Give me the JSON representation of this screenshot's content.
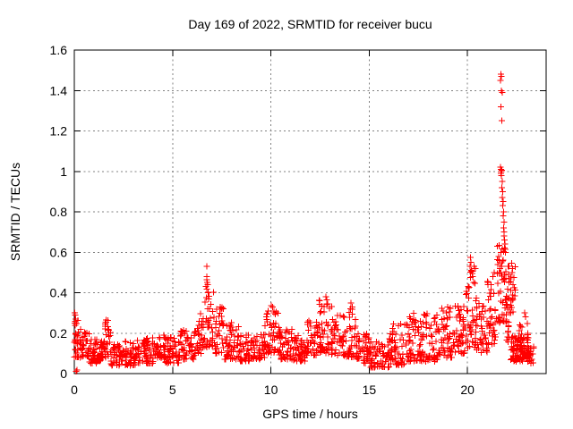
{
  "colors": {
    "marker": "#ff0000",
    "grid": "#808080",
    "border": "#000000",
    "background": "#ffffff",
    "text": "#000000"
  },
  "chart_data": {
    "type": "scatter",
    "title": "Day 169 of 2022, SRMTID for receiver bucu",
    "xlabel": "GPS time / hours",
    "ylabel": "SRMTID / TECUs",
    "xlim": [
      0,
      24
    ],
    "ylim": [
      0,
      1.6
    ],
    "xticks": [
      0,
      5,
      10,
      15,
      20
    ],
    "yticks": [
      0,
      0.2,
      0.4,
      0.6,
      0.8,
      1,
      1.2,
      1.4,
      1.6
    ],
    "grid": "dashed",
    "legend": "none",
    "marker": "plus",
    "notable_points": [
      [
        0.02,
        0.3
      ],
      [
        0.04,
        0.29
      ],
      [
        0.06,
        0.27
      ],
      [
        0.03,
        0.25
      ],
      [
        0.08,
        0.012
      ],
      [
        0.13,
        0.018
      ],
      [
        1.62,
        0.265
      ],
      [
        1.58,
        0.245
      ],
      [
        6.7,
        0.43
      ],
      [
        6.73,
        0.53
      ],
      [
        6.74,
        0.48
      ],
      [
        6.75,
        0.465
      ],
      [
        6.76,
        0.45
      ],
      [
        6.78,
        0.44
      ],
      [
        6.8,
        0.4
      ],
      [
        6.83,
        0.37
      ],
      [
        10.02,
        0.335
      ],
      [
        10.08,
        0.33
      ],
      [
        10.15,
        0.31
      ],
      [
        10.22,
        0.295
      ],
      [
        12.8,
        0.38
      ],
      [
        12.84,
        0.365
      ],
      [
        12.88,
        0.345
      ],
      [
        14.08,
        0.35
      ],
      [
        14.13,
        0.33
      ],
      [
        17.05,
        0.28
      ],
      [
        18.92,
        0.3
      ],
      [
        20.12,
        0.53
      ],
      [
        20.16,
        0.575
      ],
      [
        20.18,
        0.55
      ],
      [
        20.22,
        0.505
      ],
      [
        20.26,
        0.48
      ],
      [
        20.3,
        0.45
      ],
      [
        21.2,
        0.44
      ],
      [
        21.28,
        0.48
      ],
      [
        21.35,
        0.5
      ],
      [
        21.7,
        1.48
      ],
      [
        21.73,
        1.47
      ],
      [
        21.68,
        1.45
      ],
      [
        21.72,
        1.4
      ],
      [
        21.76,
        1.39
      ],
      [
        21.71,
        1.32
      ],
      [
        21.74,
        1.25
      ],
      [
        21.67,
        1.02
      ],
      [
        21.7,
        1.01
      ],
      [
        21.72,
        1.0
      ],
      [
        21.74,
        1.005
      ],
      [
        21.69,
        0.99
      ],
      [
        21.72,
        0.98
      ],
      [
        21.77,
        0.95
      ],
      [
        21.75,
        0.92
      ],
      [
        21.79,
        0.9
      ],
      [
        21.77,
        0.87
      ],
      [
        21.81,
        0.85
      ],
      [
        21.79,
        0.83
      ],
      [
        21.83,
        0.8
      ],
      [
        21.81,
        0.78
      ],
      [
        21.85,
        0.75
      ],
      [
        21.84,
        0.72
      ],
      [
        21.87,
        0.7
      ],
      [
        21.86,
        0.68
      ],
      [
        21.89,
        0.66
      ],
      [
        21.9,
        0.64
      ],
      [
        21.88,
        0.62
      ],
      [
        21.92,
        0.6
      ],
      [
        21.58,
        0.58
      ],
      [
        21.62,
        0.56
      ],
      [
        21.55,
        0.54
      ],
      [
        21.65,
        0.52
      ],
      [
        21.6,
        0.5
      ],
      [
        22.24,
        0.545
      ],
      [
        22.3,
        0.52
      ],
      [
        22.27,
        0.5
      ],
      [
        22.35,
        0.475
      ],
      [
        22.2,
        0.455
      ],
      [
        22.32,
        0.44
      ],
      [
        22.9,
        0.3
      ],
      [
        22.96,
        0.28
      ]
    ],
    "density_bands": [
      [
        0.0,
        0.25,
        0.08,
        0.31,
        25
      ],
      [
        0.25,
        0.75,
        0.08,
        0.22,
        35
      ],
      [
        0.75,
        1.25,
        0.05,
        0.17,
        40
      ],
      [
        1.25,
        1.55,
        0.06,
        0.18,
        25
      ],
      [
        1.55,
        1.85,
        0.08,
        0.27,
        25
      ],
      [
        1.85,
        2.5,
        0.04,
        0.15,
        45
      ],
      [
        2.5,
        3.2,
        0.04,
        0.16,
        50
      ],
      [
        3.2,
        4.0,
        0.05,
        0.18,
        55
      ],
      [
        4.0,
        4.6,
        0.07,
        0.2,
        40
      ],
      [
        4.6,
        5.4,
        0.05,
        0.18,
        55
      ],
      [
        5.4,
        6.2,
        0.07,
        0.22,
        55
      ],
      [
        6.2,
        6.6,
        0.1,
        0.3,
        30
      ],
      [
        6.6,
        7.1,
        0.13,
        0.42,
        35
      ],
      [
        7.1,
        7.6,
        0.1,
        0.33,
        35
      ],
      [
        7.6,
        8.4,
        0.07,
        0.26,
        55
      ],
      [
        8.4,
        9.2,
        0.06,
        0.19,
        55
      ],
      [
        9.2,
        9.7,
        0.07,
        0.2,
        35
      ],
      [
        9.7,
        10.4,
        0.1,
        0.32,
        50
      ],
      [
        10.4,
        11.1,
        0.07,
        0.22,
        50
      ],
      [
        11.1,
        11.8,
        0.06,
        0.2,
        50
      ],
      [
        11.8,
        12.4,
        0.09,
        0.27,
        40
      ],
      [
        12.4,
        13.1,
        0.1,
        0.37,
        50
      ],
      [
        13.1,
        13.7,
        0.09,
        0.29,
        40
      ],
      [
        13.7,
        14.35,
        0.08,
        0.33,
        45
      ],
      [
        14.35,
        15.0,
        0.05,
        0.2,
        45
      ],
      [
        15.0,
        16.0,
        0.03,
        0.16,
        65
      ],
      [
        16.0,
        16.8,
        0.04,
        0.25,
        55
      ],
      [
        16.8,
        17.6,
        0.06,
        0.3,
        55
      ],
      [
        17.6,
        18.5,
        0.06,
        0.3,
        60
      ],
      [
        18.5,
        19.3,
        0.08,
        0.33,
        55
      ],
      [
        19.3,
        19.9,
        0.1,
        0.35,
        45
      ],
      [
        19.9,
        20.45,
        0.12,
        0.55,
        45
      ],
      [
        20.45,
        21.0,
        0.1,
        0.36,
        40
      ],
      [
        21.0,
        21.5,
        0.14,
        0.5,
        35
      ],
      [
        21.5,
        21.95,
        0.25,
        0.65,
        40
      ],
      [
        21.95,
        22.2,
        0.15,
        0.35,
        15
      ],
      [
        21.95,
        22.45,
        0.3,
        0.55,
        30
      ],
      [
        22.2,
        23.15,
        0.06,
        0.2,
        90
      ],
      [
        22.45,
        23.1,
        0.05,
        0.26,
        25
      ],
      [
        23.15,
        23.4,
        0.05,
        0.15,
        15
      ]
    ]
  }
}
